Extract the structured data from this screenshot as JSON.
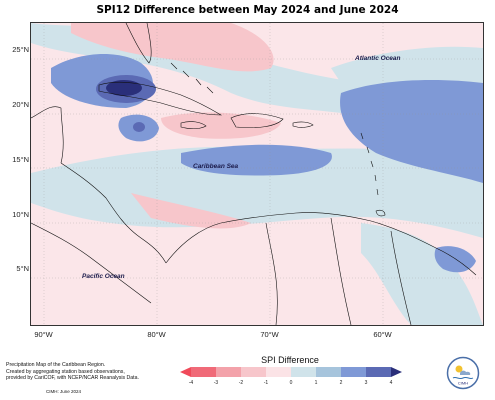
{
  "title": "SPI12 Difference between May 2024 and June 2024",
  "map": {
    "latitude_labels": [
      {
        "text": "25°N",
        "lat": 25
      },
      {
        "text": "20°N",
        "lat": 20
      },
      {
        "text": "15°N",
        "lat": 15
      },
      {
        "text": "10°N",
        "lat": 10
      },
      {
        "text": "5°N",
        "lat": 5
      }
    ],
    "longitude_labels": [
      {
        "text": "90°W",
        "lon": -90
      },
      {
        "text": "80°W",
        "lon": -80
      },
      {
        "text": "70°W",
        "lon": -70
      },
      {
        "text": "60°W",
        "lon": -60
      }
    ],
    "ocean_labels": {
      "atlantic": "Atlantic Ocean",
      "caribbean": "Caribbean Sea",
      "pacific": "Pacific Ocean"
    }
  },
  "footnote": {
    "line1": "Precipitation Map of the Caribbean Region.",
    "line2": "Created by aggregating station based observations,",
    "line3": "provided by CariCOF, with NCEP/NCAR Reanalysis Data.",
    "credit": "CIMH: June 2024"
  },
  "colorbar": {
    "title": "SPI Difference",
    "ticks": [
      "-4",
      "-3",
      "-2",
      "-1",
      "0",
      "1",
      "2",
      "3",
      "4"
    ],
    "colors": [
      "#f06a78",
      "#f3a2aa",
      "#f7c6cb",
      "#fbe3e6",
      "#d0e3ea",
      "#a6c4dc",
      "#7f99d6",
      "#5b6ab4"
    ],
    "under_color": "#f04a5a",
    "over_color": "#2a2f7a"
  },
  "logo": {
    "text": "CIMH"
  }
}
